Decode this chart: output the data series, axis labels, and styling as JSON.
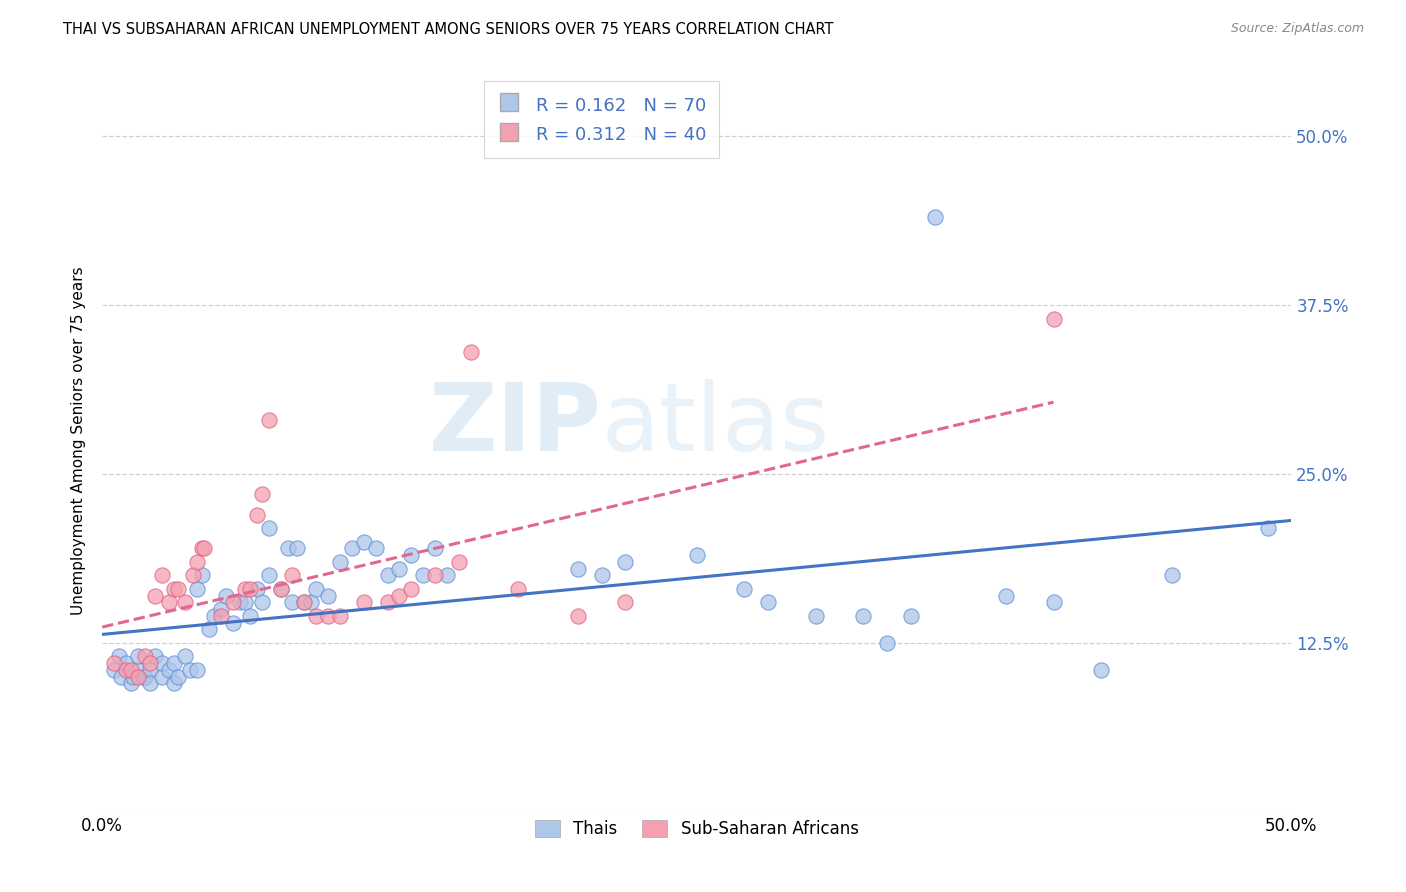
{
  "title": "THAI VS SUBSAHARAN AFRICAN UNEMPLOYMENT AMONG SENIORS OVER 75 YEARS CORRELATION CHART",
  "source": "Source: ZipAtlas.com",
  "ylabel": "Unemployment Among Seniors over 75 years",
  "xlim": [
    0.0,
    0.5
  ],
  "ylim": [
    0.0,
    0.55
  ],
  "ytick_pos": [
    0.0,
    0.125,
    0.25,
    0.375,
    0.5
  ],
  "ytick_labels": [
    "",
    "12.5%",
    "25.0%",
    "37.5%",
    "50.0%"
  ],
  "xtick_pos": [
    0.0,
    0.1,
    0.2,
    0.3,
    0.4,
    0.5
  ],
  "xtick_labels": [
    "0.0%",
    "",
    "",
    "",
    "",
    "50.0%"
  ],
  "watermark_zip": "ZIP",
  "watermark_atlas": "atlas",
  "thai_color": "#aec6e8",
  "african_color": "#f4a0b0",
  "thai_edge_color": "#5b8dd9",
  "african_edge_color": "#e06080",
  "thai_line_color": "#4472c4",
  "african_line_color": "#e06890",
  "thai_scatter": [
    [
      0.005,
      0.105
    ],
    [
      0.007,
      0.115
    ],
    [
      0.008,
      0.1
    ],
    [
      0.01,
      0.11
    ],
    [
      0.012,
      0.095
    ],
    [
      0.013,
      0.1
    ],
    [
      0.015,
      0.105
    ],
    [
      0.015,
      0.115
    ],
    [
      0.017,
      0.1
    ],
    [
      0.018,
      0.1
    ],
    [
      0.02,
      0.105
    ],
    [
      0.02,
      0.095
    ],
    [
      0.022,
      0.115
    ],
    [
      0.025,
      0.1
    ],
    [
      0.025,
      0.11
    ],
    [
      0.028,
      0.105
    ],
    [
      0.03,
      0.095
    ],
    [
      0.03,
      0.11
    ],
    [
      0.032,
      0.1
    ],
    [
      0.035,
      0.115
    ],
    [
      0.037,
      0.105
    ],
    [
      0.04,
      0.105
    ],
    [
      0.04,
      0.165
    ],
    [
      0.042,
      0.175
    ],
    [
      0.045,
      0.135
    ],
    [
      0.047,
      0.145
    ],
    [
      0.05,
      0.15
    ],
    [
      0.052,
      0.16
    ],
    [
      0.055,
      0.14
    ],
    [
      0.058,
      0.155
    ],
    [
      0.06,
      0.155
    ],
    [
      0.062,
      0.145
    ],
    [
      0.065,
      0.165
    ],
    [
      0.067,
      0.155
    ],
    [
      0.07,
      0.21
    ],
    [
      0.07,
      0.175
    ],
    [
      0.075,
      0.165
    ],
    [
      0.078,
      0.195
    ],
    [
      0.08,
      0.155
    ],
    [
      0.082,
      0.195
    ],
    [
      0.085,
      0.155
    ],
    [
      0.088,
      0.155
    ],
    [
      0.09,
      0.165
    ],
    [
      0.095,
      0.16
    ],
    [
      0.1,
      0.185
    ],
    [
      0.105,
      0.195
    ],
    [
      0.11,
      0.2
    ],
    [
      0.115,
      0.195
    ],
    [
      0.12,
      0.175
    ],
    [
      0.125,
      0.18
    ],
    [
      0.13,
      0.19
    ],
    [
      0.135,
      0.175
    ],
    [
      0.14,
      0.195
    ],
    [
      0.145,
      0.175
    ],
    [
      0.2,
      0.18
    ],
    [
      0.21,
      0.175
    ],
    [
      0.22,
      0.185
    ],
    [
      0.25,
      0.19
    ],
    [
      0.27,
      0.165
    ],
    [
      0.28,
      0.155
    ],
    [
      0.3,
      0.145
    ],
    [
      0.32,
      0.145
    ],
    [
      0.33,
      0.125
    ],
    [
      0.34,
      0.145
    ],
    [
      0.38,
      0.16
    ],
    [
      0.4,
      0.155
    ],
    [
      0.42,
      0.105
    ],
    [
      0.45,
      0.175
    ],
    [
      0.49,
      0.21
    ],
    [
      0.35,
      0.44
    ]
  ],
  "african_scatter": [
    [
      0.005,
      0.11
    ],
    [
      0.01,
      0.105
    ],
    [
      0.012,
      0.105
    ],
    [
      0.015,
      0.1
    ],
    [
      0.018,
      0.115
    ],
    [
      0.02,
      0.11
    ],
    [
      0.022,
      0.16
    ],
    [
      0.025,
      0.175
    ],
    [
      0.028,
      0.155
    ],
    [
      0.03,
      0.165
    ],
    [
      0.032,
      0.165
    ],
    [
      0.035,
      0.155
    ],
    [
      0.038,
      0.175
    ],
    [
      0.04,
      0.185
    ],
    [
      0.042,
      0.195
    ],
    [
      0.043,
      0.195
    ],
    [
      0.05,
      0.145
    ],
    [
      0.055,
      0.155
    ],
    [
      0.06,
      0.165
    ],
    [
      0.062,
      0.165
    ],
    [
      0.065,
      0.22
    ],
    [
      0.067,
      0.235
    ],
    [
      0.07,
      0.29
    ],
    [
      0.075,
      0.165
    ],
    [
      0.08,
      0.175
    ],
    [
      0.085,
      0.155
    ],
    [
      0.09,
      0.145
    ],
    [
      0.095,
      0.145
    ],
    [
      0.1,
      0.145
    ],
    [
      0.11,
      0.155
    ],
    [
      0.12,
      0.155
    ],
    [
      0.125,
      0.16
    ],
    [
      0.13,
      0.165
    ],
    [
      0.14,
      0.175
    ],
    [
      0.15,
      0.185
    ],
    [
      0.155,
      0.34
    ],
    [
      0.175,
      0.165
    ],
    [
      0.2,
      0.145
    ],
    [
      0.22,
      0.155
    ],
    [
      0.4,
      0.365
    ]
  ]
}
